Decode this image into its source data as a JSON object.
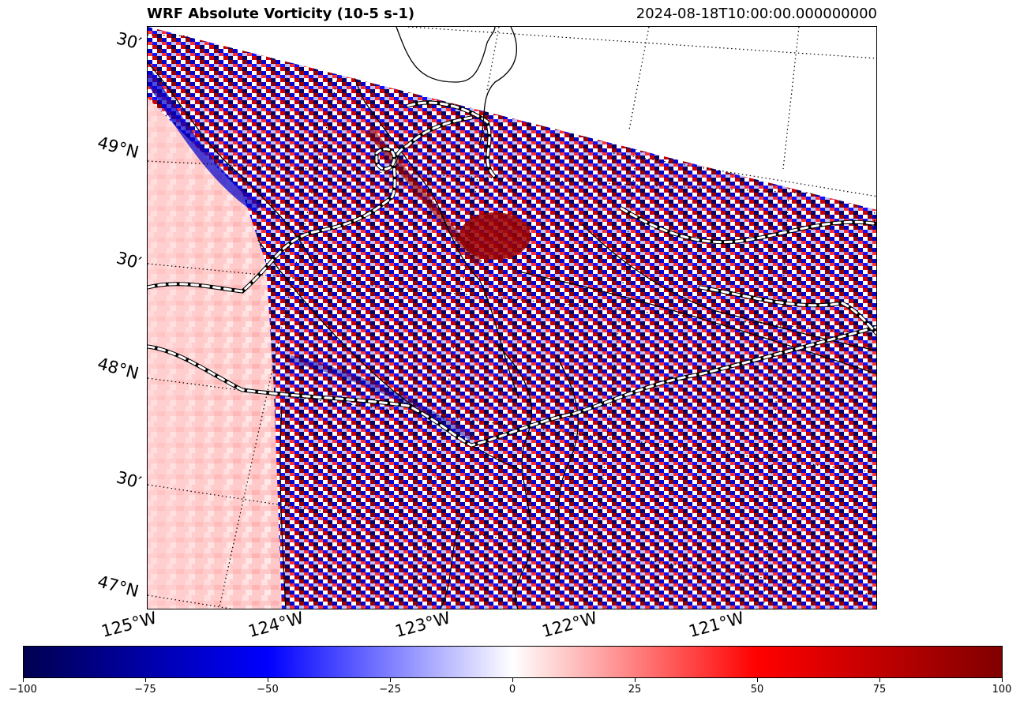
{
  "header": {
    "title": "WRF Absolute Vorticity (10-5 s-1)",
    "timestamp": "2024-08-18T10:00:00.000000000"
  },
  "map": {
    "lat_labels": [
      "30′",
      "49°N",
      "30′",
      "48°N",
      "30′",
      "47°N"
    ],
    "lon_labels": [
      "125°W",
      "124°W",
      "123°W",
      "122°W",
      "121°W"
    ],
    "colormap": "seismic",
    "colors": {
      "negative_extreme": "#000050",
      "negative": "#0000ff",
      "zero": "#ffffff",
      "positive": "#ff0000",
      "positive_extreme": "#800000"
    }
  },
  "colorbar": {
    "ticks": [
      "−100",
      "−75",
      "−50",
      "−25",
      "0",
      "25",
      "50",
      "75",
      "100"
    ],
    "range": [
      -100,
      100
    ]
  }
}
